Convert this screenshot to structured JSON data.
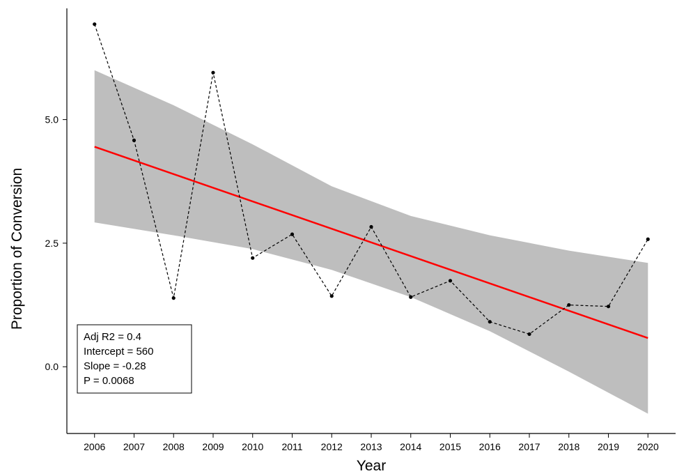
{
  "chart_data": {
    "type": "line",
    "title": "",
    "xlabel": "Year",
    "ylabel": "Proportion of Conversion",
    "x": [
      2006,
      2007,
      2008,
      2009,
      2010,
      2011,
      2012,
      2013,
      2014,
      2015,
      2016,
      2017,
      2018,
      2019,
      2020
    ],
    "x_tick_labels": [
      "2006",
      "2007",
      "2008",
      "2009",
      "2010",
      "2011",
      "2012",
      "2013",
      "2014",
      "2015",
      "2016",
      "2017",
      "2018",
      "2019",
      "2020"
    ],
    "y_ticks": [
      0.0,
      2.5,
      5.0
    ],
    "y_tick_labels": [
      "0.0",
      "2.5",
      "5.0"
    ],
    "xlim": [
      2005.3,
      2020.7
    ],
    "ylim": [
      -1.35,
      7.25
    ],
    "grid": false,
    "series": [
      {
        "style": "dashed-black-with-points",
        "color": "#000000",
        "values": [
          6.93,
          4.58,
          1.39,
          5.95,
          2.2,
          2.68,
          1.43,
          2.83,
          1.41,
          1.74,
          0.91,
          0.66,
          1.25,
          1.22,
          2.58
        ]
      }
    ],
    "regression": {
      "color": "#ff0000",
      "start": [
        2006,
        4.45
      ],
      "end": [
        2020,
        0.58
      ],
      "confidence_band": {
        "color": "#bebebe",
        "x": [
          2006,
          2008,
          2010,
          2012,
          2014,
          2016,
          2018,
          2020
        ],
        "lower": [
          2.92,
          2.66,
          2.38,
          1.96,
          1.41,
          0.72,
          -0.1,
          -0.95
        ],
        "upper": [
          6.0,
          5.29,
          4.5,
          3.65,
          3.05,
          2.66,
          2.35,
          2.1
        ]
      }
    },
    "stats_box": {
      "lines": [
        "Adj R2 = 0.4",
        "Intercept = 560",
        "Slope = -0.28",
        "P = 0.0068"
      ],
      "placement": "bottom-left"
    }
  }
}
